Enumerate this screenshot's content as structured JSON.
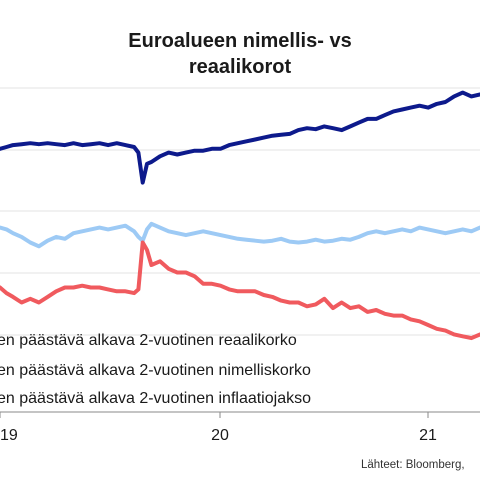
{
  "chart_data": {
    "type": "line",
    "title_lines": [
      "Euroalueen nimellis- vs",
      "reaalikorot"
    ],
    "x_tick_labels": [
      "19",
      "20",
      "21"
    ],
    "grid": "horizontal",
    "legend_placement": "lower-left",
    "series": [
      {
        "name": "en päästävä alkava 2-vuotinen reaalikorko",
        "color": "#0d1a8c",
        "x": [
          2019.0,
          2019.03,
          2019.06,
          2019.1,
          2019.14,
          2019.18,
          2019.22,
          2019.26,
          2019.3,
          2019.34,
          2019.38,
          2019.42,
          2019.46,
          2019.5,
          2019.54,
          2019.58,
          2019.62,
          2019.64,
          2019.66,
          2019.68,
          2019.7,
          2019.74,
          2019.78,
          2019.82,
          2019.86,
          2019.9,
          2019.94,
          2019.98,
          2020.02,
          2020.06,
          2020.1,
          2020.14,
          2020.18,
          2020.22,
          2020.26,
          2020.3,
          2020.34,
          2020.38,
          2020.42,
          2020.46,
          2020.5,
          2020.54,
          2020.58,
          2020.62,
          2020.66,
          2020.7,
          2020.74,
          2020.78,
          2020.82,
          2020.86,
          2020.9,
          2020.94,
          2020.98,
          2021.02,
          2021.06,
          2021.1,
          2021.14,
          2021.18,
          2021.22
        ],
        "values": [
          -0.08,
          -0.07,
          -0.06,
          -0.055,
          -0.05,
          -0.055,
          -0.05,
          -0.055,
          -0.06,
          -0.05,
          -0.06,
          -0.055,
          -0.05,
          -0.06,
          -0.05,
          -0.06,
          -0.07,
          -0.1,
          -0.26,
          -0.16,
          -0.15,
          -0.12,
          -0.1,
          -0.11,
          -0.1,
          -0.09,
          -0.09,
          -0.08,
          -0.08,
          -0.06,
          -0.05,
          -0.04,
          -0.03,
          -0.02,
          -0.01,
          -0.005,
          0.0,
          0.02,
          0.03,
          0.025,
          0.04,
          0.03,
          0.02,
          0.04,
          0.06,
          0.08,
          0.08,
          0.1,
          0.12,
          0.13,
          0.14,
          0.15,
          0.14,
          0.16,
          0.17,
          0.2,
          0.22,
          0.2,
          0.21
        ]
      },
      {
        "name": "en päästävä alkava 2-vuotinen nimelliskorko",
        "color": "#9dcaf5",
        "x": [
          2019.0,
          2019.03,
          2019.06,
          2019.1,
          2019.14,
          2019.18,
          2019.22,
          2019.26,
          2019.3,
          2019.34,
          2019.38,
          2019.42,
          2019.46,
          2019.5,
          2019.54,
          2019.58,
          2019.62,
          2019.64,
          2019.66,
          2019.68,
          2019.7,
          2019.74,
          2019.78,
          2019.82,
          2019.86,
          2019.9,
          2019.94,
          2019.98,
          2020.02,
          2020.06,
          2020.1,
          2020.14,
          2020.18,
          2020.22,
          2020.26,
          2020.3,
          2020.34,
          2020.38,
          2020.42,
          2020.46,
          2020.5,
          2020.54,
          2020.58,
          2020.62,
          2020.66,
          2020.7,
          2020.74,
          2020.78,
          2020.82,
          2020.86,
          2020.9,
          2020.94,
          2020.98,
          2021.02,
          2021.06,
          2021.1,
          2021.14,
          2021.18,
          2021.22
        ],
        "values": [
          -0.5,
          -0.51,
          -0.53,
          -0.55,
          -0.58,
          -0.6,
          -0.57,
          -0.55,
          -0.56,
          -0.53,
          -0.52,
          -0.51,
          -0.5,
          -0.51,
          -0.5,
          -0.49,
          -0.52,
          -0.55,
          -0.57,
          -0.51,
          -0.48,
          -0.5,
          -0.52,
          -0.53,
          -0.54,
          -0.53,
          -0.52,
          -0.53,
          -0.54,
          -0.55,
          -0.56,
          -0.565,
          -0.57,
          -0.575,
          -0.57,
          -0.56,
          -0.575,
          -0.58,
          -0.575,
          -0.565,
          -0.575,
          -0.57,
          -0.56,
          -0.565,
          -0.55,
          -0.53,
          -0.52,
          -0.53,
          -0.52,
          -0.51,
          -0.52,
          -0.5,
          -0.51,
          -0.52,
          -0.53,
          -0.52,
          -0.51,
          -0.52,
          -0.5
        ]
      },
      {
        "name": "en päästävä alkava 2-vuotinen inflaatiojakso",
        "color": "#f05a5e",
        "x": [
          2019.0,
          2019.03,
          2019.06,
          2019.1,
          2019.14,
          2019.18,
          2019.22,
          2019.26,
          2019.3,
          2019.34,
          2019.38,
          2019.42,
          2019.46,
          2019.5,
          2019.54,
          2019.58,
          2019.62,
          2019.64,
          2019.66,
          2019.68,
          2019.7,
          2019.74,
          2019.78,
          2019.82,
          2019.86,
          2019.9,
          2019.94,
          2019.98,
          2020.02,
          2020.06,
          2020.1,
          2020.14,
          2020.18,
          2020.22,
          2020.26,
          2020.3,
          2020.34,
          2020.38,
          2020.42,
          2020.46,
          2020.5,
          2020.54,
          2020.58,
          2020.62,
          2020.66,
          2020.7,
          2020.74,
          2020.78,
          2020.82,
          2020.86,
          2020.9,
          2020.94,
          2020.98,
          2021.02,
          2021.06,
          2021.1,
          2021.14,
          2021.18,
          2021.22
        ],
        "values": [
          -0.82,
          -0.85,
          -0.87,
          -0.9,
          -0.88,
          -0.9,
          -0.87,
          -0.84,
          -0.82,
          -0.82,
          -0.81,
          -0.82,
          -0.82,
          -0.83,
          -0.84,
          -0.84,
          -0.85,
          -0.83,
          -0.58,
          -0.62,
          -0.7,
          -0.68,
          -0.72,
          -0.74,
          -0.74,
          -0.76,
          -0.8,
          -0.8,
          -0.81,
          -0.83,
          -0.84,
          -0.84,
          -0.84,
          -0.86,
          -0.87,
          -0.89,
          -0.9,
          -0.9,
          -0.92,
          -0.91,
          -0.88,
          -0.93,
          -0.9,
          -0.93,
          -0.92,
          -0.95,
          -0.94,
          -0.96,
          -0.97,
          -0.97,
          -0.99,
          -1.0,
          -1.02,
          -1.04,
          -1.05,
          -1.07,
          -1.08,
          -1.09,
          -1.07
        ]
      }
    ],
    "source_text": "Lähteet: Bloomberg,"
  }
}
